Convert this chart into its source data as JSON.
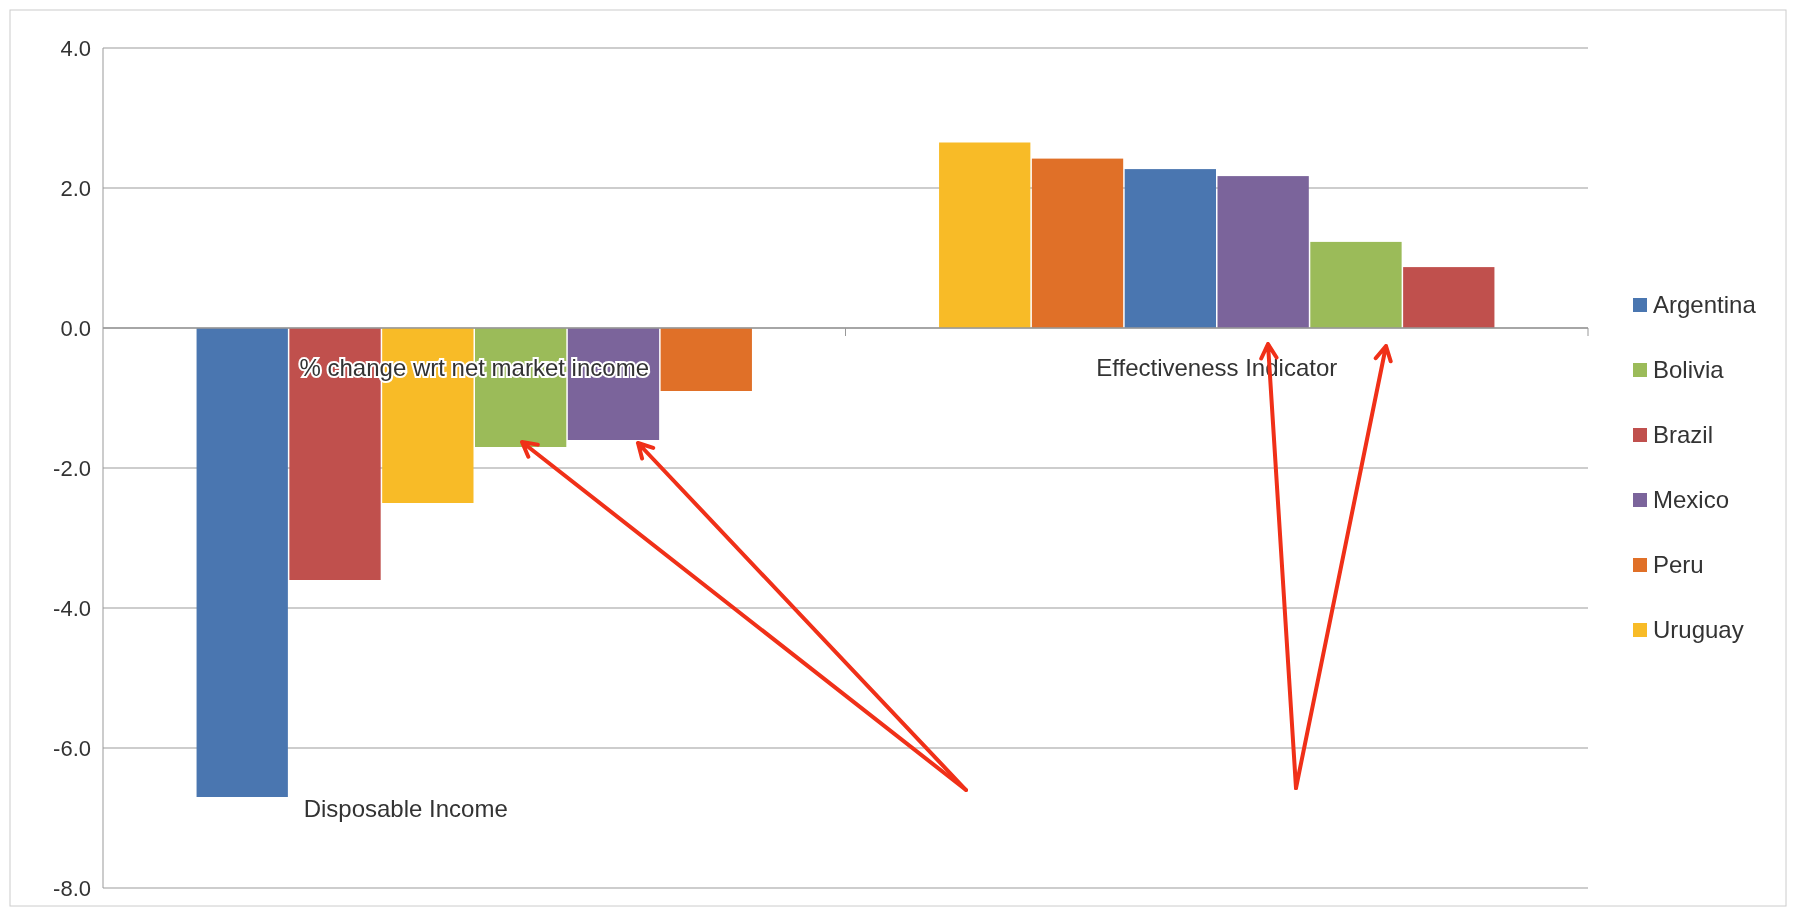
{
  "chart_data": {
    "type": "bar",
    "stacked": true,
    "categories": [
      null,
      null,
      null,
      null,
      null,
      null,
      null,
      null,
      null,
      null,
      null,
      null,
      null,
      null,
      null,
      null
    ],
    "series": [
      {
        "name": "Argentina",
        "color": "#4a76b0",
        "values": [
          null,
          -6.7,
          null,
          null,
          null,
          null,
          null,
          null,
          null,
          null,
          null,
          2.27,
          null,
          null,
          null,
          null
        ]
      },
      {
        "name": "Bolivia",
        "color": "#9bbb59",
        "values": [
          null,
          null,
          null,
          null,
          -1.7,
          null,
          null,
          null,
          null,
          null,
          null,
          null,
          null,
          1.23,
          null,
          null
        ]
      },
      {
        "name": "Brazil",
        "color": "#c0504d",
        "values": [
          null,
          null,
          -3.6,
          null,
          null,
          null,
          null,
          null,
          null,
          null,
          null,
          null,
          null,
          null,
          0.87,
          null
        ]
      },
      {
        "name": "Mexico",
        "color": "#7b649b",
        "values": [
          null,
          null,
          null,
          null,
          null,
          -1.6,
          null,
          null,
          null,
          null,
          null,
          null,
          2.17,
          null,
          null,
          null
        ]
      },
      {
        "name": "Peru",
        "color": "#e07028",
        "values": [
          null,
          null,
          null,
          null,
          null,
          null,
          -0.9,
          null,
          null,
          null,
          2.42,
          null,
          null,
          null,
          null,
          null
        ]
      },
      {
        "name": "Uruguay",
        "color": "#f8bb27",
        "values": [
          null,
          null,
          null,
          -2.5,
          null,
          null,
          null,
          null,
          null,
          2.65,
          null,
          null,
          null,
          null,
          null,
          null
        ]
      }
    ],
    "ylim": [
      -8,
      4
    ],
    "yticks": [
      {
        "value": -8,
        "label": "-8.0"
      },
      {
        "value": -6,
        "label": "-6.0"
      },
      {
        "value": -4,
        "label": "-4.0"
      },
      {
        "value": -2,
        "label": "-2.0"
      },
      {
        "value": 0,
        "label": "0.0"
      },
      {
        "value": 2,
        "label": "2.0"
      },
      {
        "value": 4,
        "label": "4.0"
      }
    ],
    "grid": "y",
    "legend": "right",
    "tick_labels": "y",
    "annotations": [
      "% change wrt net market income",
      "Effectiveness Indicator",
      "Disposable Income"
    ]
  }
}
